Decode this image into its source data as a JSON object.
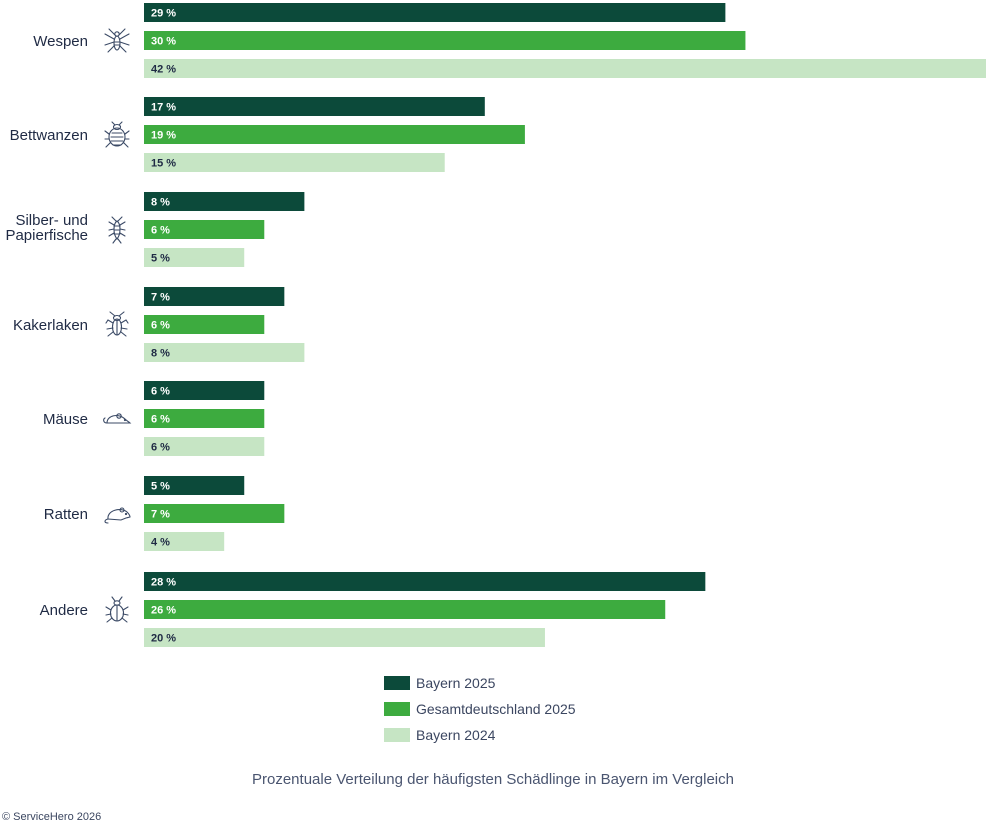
{
  "chart_data": {
    "type": "bar",
    "orientation": "horizontal",
    "title": "Prozentuale Verteilung der häufigsten Schädlinge in Bayern im Vergleich",
    "categories": [
      {
        "label": [
          "Wespen"
        ],
        "icon": "wasp-icon"
      },
      {
        "label": [
          "Bettwanzen"
        ],
        "icon": "bedbug-icon"
      },
      {
        "label": [
          "Silber- und",
          "Papierfische"
        ],
        "icon": "silverfish-icon"
      },
      {
        "label": [
          "Kakerlaken"
        ],
        "icon": "cockroach-icon"
      },
      {
        "label": [
          "Mäuse"
        ],
        "icon": "mouse-icon"
      },
      {
        "label": [
          "Ratten"
        ],
        "icon": "rat-icon"
      },
      {
        "label": [
          "Andere"
        ],
        "icon": "beetle-icon"
      }
    ],
    "series": [
      {
        "name": "Bayern 2025",
        "color": "#0c4a3a",
        "label_color": "#ffffff",
        "values": [
          29,
          17,
          8,
          7,
          6,
          5,
          28
        ]
      },
      {
        "name": "Gesamtdeutschland 2025",
        "color": "#3dab3f",
        "label_color": "#ffffff",
        "values": [
          30,
          19,
          6,
          6,
          6,
          7,
          26
        ]
      },
      {
        "name": "Bayern 2024",
        "color": "#c6e5c4",
        "label_color": "#1f2a44",
        "values": [
          42,
          15,
          5,
          8,
          6,
          4,
          20
        ]
      }
    ],
    "value_suffix": " %",
    "xlim": [
      0,
      42
    ],
    "grid": false,
    "legend_position": "bottom-center"
  },
  "caption": "Prozentuale Verteilung der häufigsten Schädlinge in Bayern im Vergleich",
  "copyright": "© ServiceHero 2026"
}
